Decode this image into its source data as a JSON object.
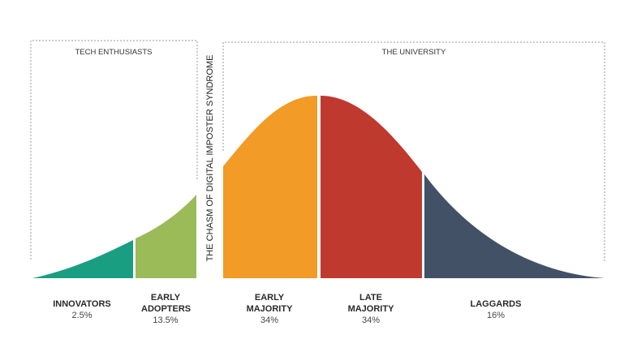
{
  "groups": {
    "left": "TECH ENTHUSIASTS",
    "right": "THE UNIVERSITY"
  },
  "chasm_label": "THE CHASM OF DIGITAL IMPOSTER SYNDROME",
  "segments": [
    {
      "name": "INNOVATORS",
      "percent": "2.5%",
      "color": "#1a9e82"
    },
    {
      "name": "EARLY ADOPTERS",
      "percent": "13.5%",
      "color": "#9bbb59"
    },
    {
      "name": "EARLY MAJORITY",
      "percent": "34%",
      "color": "#f29b26"
    },
    {
      "name": "LATE MAJORITY",
      "percent": "34%",
      "color": "#c0392f"
    },
    {
      "name": "LAGGARDS",
      "percent": "16%",
      "color": "#435167"
    }
  ]
}
